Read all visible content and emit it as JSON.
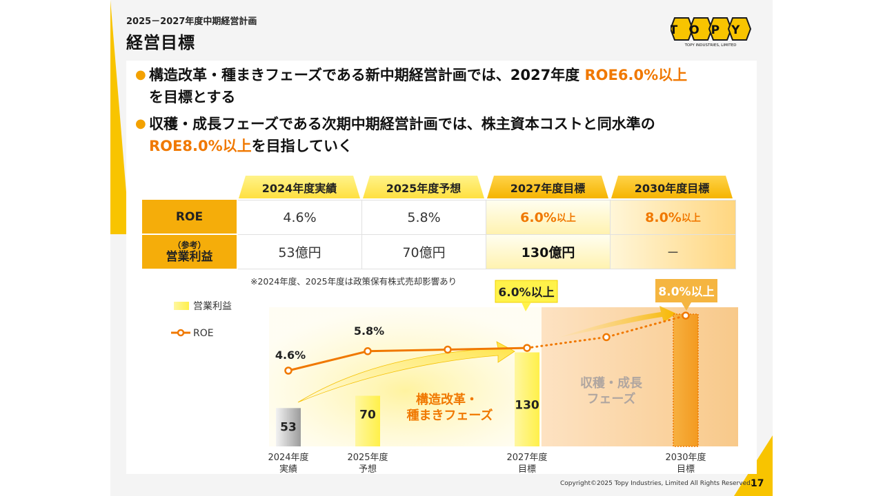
{
  "header": {
    "subtitle": "2025－2027年度中期経営計画",
    "title": "経営目標",
    "logo_text": "TOPY",
    "logo_sub": "TOPY INDUSTRIES, LIMITED"
  },
  "bullets": [
    {
      "pre": "構造改革・種まきフェーズである新中期経営計画では、2027年度 ",
      "hl": "ROE6.0%以上",
      "post": "",
      "line2_pre": "を目標とする",
      "line2_hl": "",
      "line2_post": ""
    },
    {
      "pre": "収穫・成長フェーズである次期中期経営計画では、株主資本コストと同水準の",
      "hl": "",
      "post": "",
      "line2_pre": "",
      "line2_hl": "ROE8.0%以上",
      "line2_post": "を目指していく"
    }
  ],
  "table": {
    "headers": [
      "2024年度実績",
      "2025年度予想",
      "2027年度目標",
      "2030年度目標"
    ],
    "rows": [
      {
        "label": "ROE",
        "label_small": "",
        "values": [
          "4.6%",
          "5.8%",
          "6.0%",
          "8.0%"
        ],
        "suffix": [
          "",
          "",
          "以上",
          "以上"
        ]
      },
      {
        "label": "営業利益",
        "label_small": "（参考）",
        "values": [
          "53億円",
          "70億円",
          "130億円",
          "－"
        ],
        "suffix": [
          "",
          "",
          "",
          ""
        ]
      }
    ],
    "note": "※2024年度、2025年度は政策保有株式売却影響あり"
  },
  "chart_data": {
    "type": "bar+line",
    "legend": [
      "営業利益",
      "ROE"
    ],
    "categories": [
      "2024年度\n実績",
      "2025年度\n予想",
      "2027年度\n目標",
      "2030年度\n目標"
    ],
    "bars": [
      {
        "category": "2024年度実績",
        "value": 53,
        "label": "53"
      },
      {
        "category": "2025年度予想",
        "value": 70,
        "label": "70"
      },
      {
        "category": "2027年度目標",
        "value": 130,
        "label": "130"
      },
      {
        "category": "2030年度目標",
        "value": null,
        "label": ""
      }
    ],
    "roe_series": {
      "name": "ROE",
      "points": [
        {
          "year": 2024,
          "value": 4.6,
          "label": "4.6%"
        },
        {
          "year": 2025,
          "value": 5.8,
          "label": "5.8%"
        },
        {
          "year": 2026,
          "value": null,
          "label": ""
        },
        {
          "year": 2027,
          "value": 6.0,
          "label": "6.0%以上"
        },
        {
          "year": 2028,
          "value": null,
          "label": ""
        },
        {
          "year": 2030,
          "value": 8.0,
          "label": "8.0%以上"
        }
      ]
    },
    "phase_labels": {
      "phase1": [
        "構造改革・",
        "種まきフェーズ"
      ],
      "phase2": [
        "収穫・成長",
        "フェーズ"
      ]
    },
    "colors": {
      "roe": "#f07800",
      "bar": "#fff06a",
      "phase2": "#f4b060",
      "highlight": "#f3a100"
    }
  },
  "footer": {
    "copyright": "Copyright©2025 Topy Industries, Limited All Rights Reserved.",
    "page": "17"
  }
}
